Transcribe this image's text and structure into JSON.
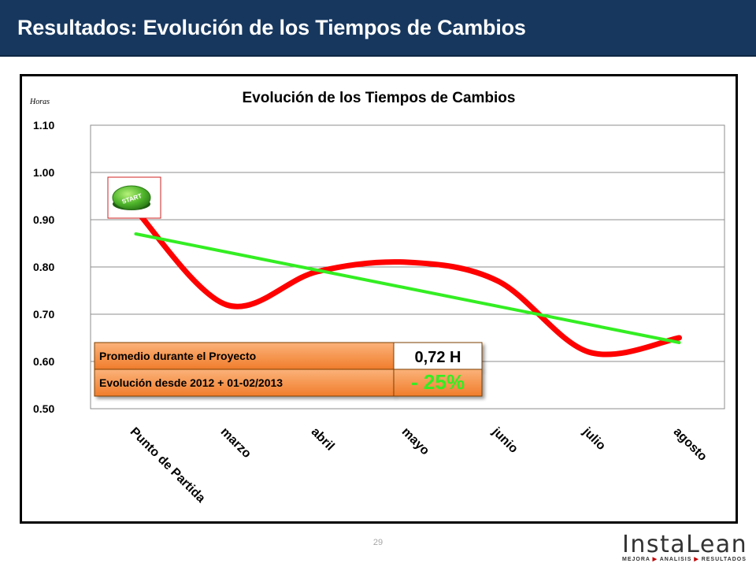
{
  "slide": {
    "title": "Resultados: Evolución de los Tiempos de Cambios",
    "page_number": "29"
  },
  "logo": {
    "name": "InstaLean",
    "tagline": [
      "MEJORA",
      "ANALISIS",
      "RESULTADOS"
    ],
    "tagline_arrow": "▶"
  },
  "colors": {
    "header": "#17375e",
    "series": "#ff0000",
    "trend": "#33ee22",
    "summary_fill": "#f79646",
    "summary_value_fill": "#ffffff",
    "evolution_text": "#33ee22"
  },
  "chart_data": {
    "type": "line",
    "title": "Evolución de los Tiempos de Cambios",
    "ylabel": "Horas",
    "xlabel": "",
    "categories": [
      "Punto de Partida",
      "marzo",
      "abril",
      "mayo",
      "junio",
      "julio",
      "agosto"
    ],
    "series": [
      {
        "values": [
          0.92,
          0.72,
          0.79,
          0.81,
          0.77,
          0.62,
          0.65
        ],
        "color": "#ff0000",
        "smooth": true
      },
      {
        "values": [
          0.87,
          0.83,
          0.795,
          0.755,
          0.715,
          0.68,
          0.64
        ],
        "color": "#33ee22",
        "kind": "trendline"
      }
    ],
    "ylim": [
      0.5,
      1.1
    ],
    "yticks": [
      "0.50",
      "0.60",
      "0.70",
      "0.80",
      "0.90",
      "1.00",
      "1.10"
    ],
    "grid": true,
    "annotations": {
      "start_icon": {
        "label": "START",
        "icon": "start-button-icon"
      },
      "summary_table": {
        "rows": [
          {
            "label": "Promedio durante   el Proyecto",
            "value": "0,72 H"
          },
          {
            "label": "Evolución  desde 2012 + 01-02/2013",
            "value": "- 25%"
          }
        ]
      }
    }
  }
}
